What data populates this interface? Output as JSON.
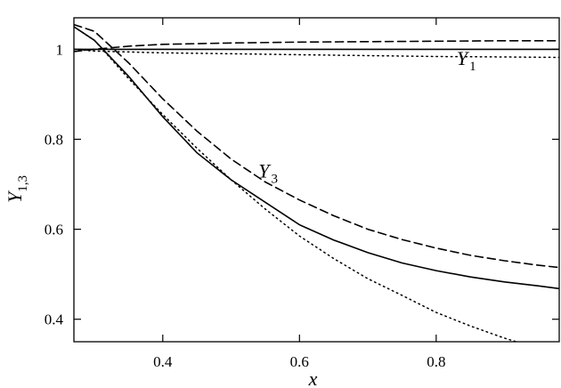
{
  "chart_data": {
    "type": "line",
    "xlabel": "x",
    "ylabel": {
      "main": "Y",
      "sub": "1,3"
    },
    "xlim": [
      0.27,
      0.98
    ],
    "ylim": [
      0.35,
      1.07
    ],
    "x_ticks": [
      0.4,
      0.6,
      0.8
    ],
    "x_tick_labels": [
      "0.4",
      "0.6",
      "0.8"
    ],
    "y_ticks": [
      0.4,
      0.6,
      0.8,
      1.0
    ],
    "y_tick_labels": [
      "0.4",
      "0.6",
      "0.8",
      "1"
    ],
    "grid": false,
    "annotations": [
      {
        "main": "Y",
        "sub": "1",
        "x": 0.83,
        "y": 0.965
      },
      {
        "main": "Y",
        "sub": "3",
        "x": 0.54,
        "y": 0.715
      }
    ],
    "series": [
      {
        "style": "solid",
        "group": "Y1",
        "x": [
          0.27,
          0.3,
          0.4,
          0.5,
          0.6,
          0.7,
          0.8,
          0.9,
          0.98
        ],
        "y": [
          1.0,
          1.0,
          1.0,
          1.0,
          1.0,
          1.0,
          1.0,
          1.0,
          1.0
        ]
      },
      {
        "style": "dashed",
        "group": "Y1",
        "x": [
          0.27,
          0.3,
          0.35,
          0.4,
          0.5,
          0.6,
          0.7,
          0.8,
          0.9,
          0.98
        ],
        "y": [
          0.995,
          1.0,
          1.007,
          1.011,
          1.014,
          1.016,
          1.017,
          1.018,
          1.019,
          1.019
        ]
      },
      {
        "style": "dotted",
        "group": "Y1",
        "x": [
          0.27,
          0.3,
          0.4,
          0.5,
          0.6,
          0.7,
          0.8,
          0.9,
          0.98
        ],
        "y": [
          1.0,
          0.996,
          0.992,
          0.99,
          0.988,
          0.986,
          0.984,
          0.983,
          0.982
        ]
      },
      {
        "style": "solid",
        "group": "Y3",
        "x": [
          0.27,
          0.3,
          0.35,
          0.4,
          0.45,
          0.5,
          0.55,
          0.6,
          0.65,
          0.7,
          0.75,
          0.8,
          0.85,
          0.9,
          0.95,
          0.98
        ],
        "y": [
          1.05,
          1.02,
          0.94,
          0.85,
          0.77,
          0.71,
          0.66,
          0.61,
          0.576,
          0.548,
          0.525,
          0.508,
          0.494,
          0.483,
          0.474,
          0.468
        ]
      },
      {
        "style": "dashed",
        "group": "Y3",
        "x": [
          0.27,
          0.3,
          0.35,
          0.4,
          0.45,
          0.5,
          0.55,
          0.6,
          0.65,
          0.7,
          0.75,
          0.8,
          0.85,
          0.9,
          0.95,
          0.98
        ],
        "y": [
          1.055,
          1.04,
          0.97,
          0.89,
          0.818,
          0.756,
          0.705,
          0.665,
          0.63,
          0.6,
          0.577,
          0.558,
          0.542,
          0.53,
          0.52,
          0.515
        ]
      },
      {
        "style": "dotted",
        "group": "Y3",
        "x": [
          0.27,
          0.3,
          0.35,
          0.4,
          0.45,
          0.5,
          0.55,
          0.6,
          0.65,
          0.7,
          0.75,
          0.8,
          0.85,
          0.9,
          0.95,
          0.98
        ],
        "y": [
          1.05,
          1.02,
          0.935,
          0.855,
          0.78,
          0.71,
          0.645,
          0.585,
          0.535,
          0.49,
          0.453,
          0.415,
          0.385,
          0.358,
          0.335,
          0.32
        ]
      }
    ]
  }
}
